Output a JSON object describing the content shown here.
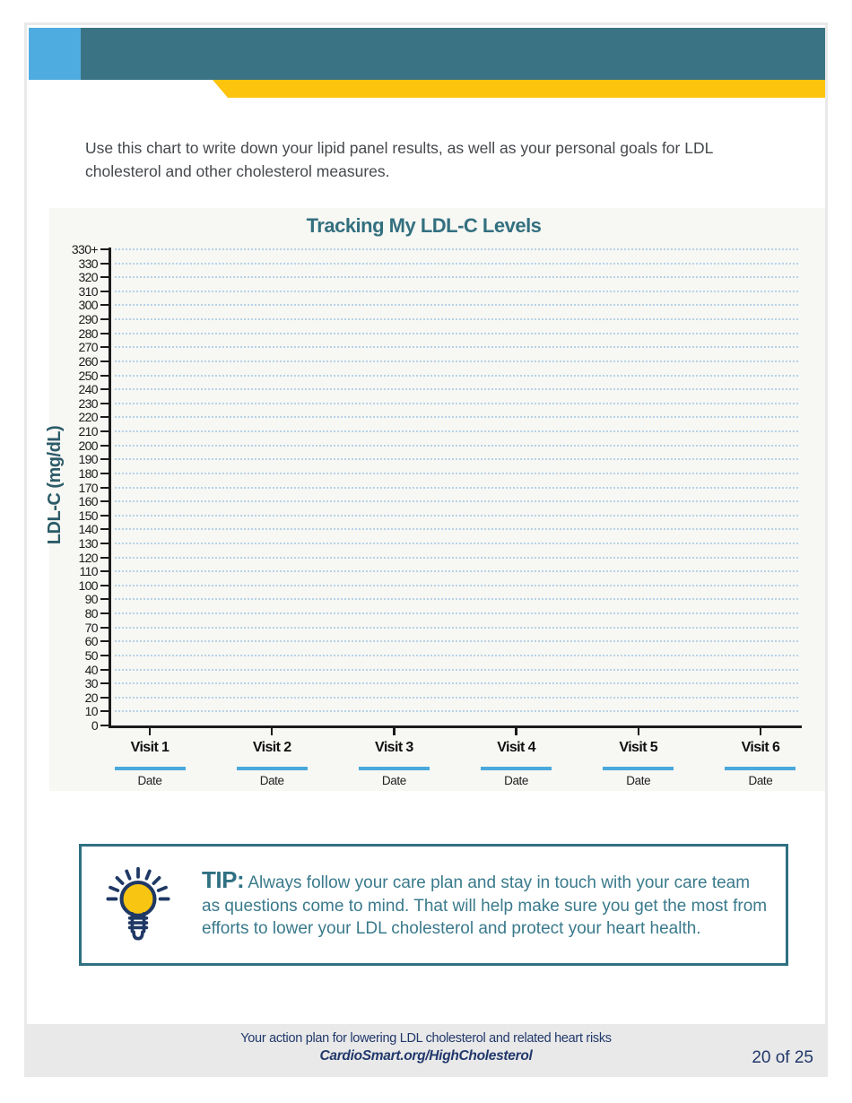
{
  "header": {
    "colors": {
      "square_blue": "#4FACE1",
      "band_teal": "#3A7383",
      "stripe_yellow": "#FCC40D"
    }
  },
  "intro": {
    "text": "Use this chart to write down your lipid panel results, as well as your personal goals for LDL cholesterol and other cholesterol measures."
  },
  "chart_data": {
    "type": "line",
    "title": "Tracking My LDL-C Levels",
    "xlabel": "",
    "ylabel": "LDL-C (mg/dL)",
    "ylim": [
      0,
      340
    ],
    "y_tick_step": 10,
    "y_tick_labels": [
      "330+",
      "330",
      "320",
      "310",
      "300",
      "290",
      "280",
      "270",
      "260",
      "250",
      "240",
      "230",
      "220",
      "210",
      "200",
      "190",
      "180",
      "170",
      "160",
      "150",
      "140",
      "130",
      "120",
      "110",
      "100",
      "90",
      "80",
      "70",
      "60",
      "50",
      "40",
      "30",
      "20",
      "10",
      "0"
    ],
    "x_categories": [
      "Visit 1",
      "Visit 2",
      "Visit 3",
      "Visit 4",
      "Visit 5",
      "Visit 6"
    ],
    "x_sub_label": "Date",
    "series": [],
    "grid": "horizontal dotted",
    "legend": "none",
    "colors": {
      "title": "#33707F",
      "gridline": "#A5CBE6",
      "axis": "#1b1b1b",
      "date_line": "#4AA9DC"
    }
  },
  "tip": {
    "label": "TIP:",
    "text": "Always follow your care plan and stay in touch with your care team as questions come to mind. That will help make sure you get the most from efforts to lower your LDL cholesterol and protect your heart health."
  },
  "footer": {
    "line1": "Your action plan for lowering LDL cholesterol and related heart risks",
    "line2": "CardioSmart.org/HighCholesterol",
    "page_number": "20 of 25"
  }
}
